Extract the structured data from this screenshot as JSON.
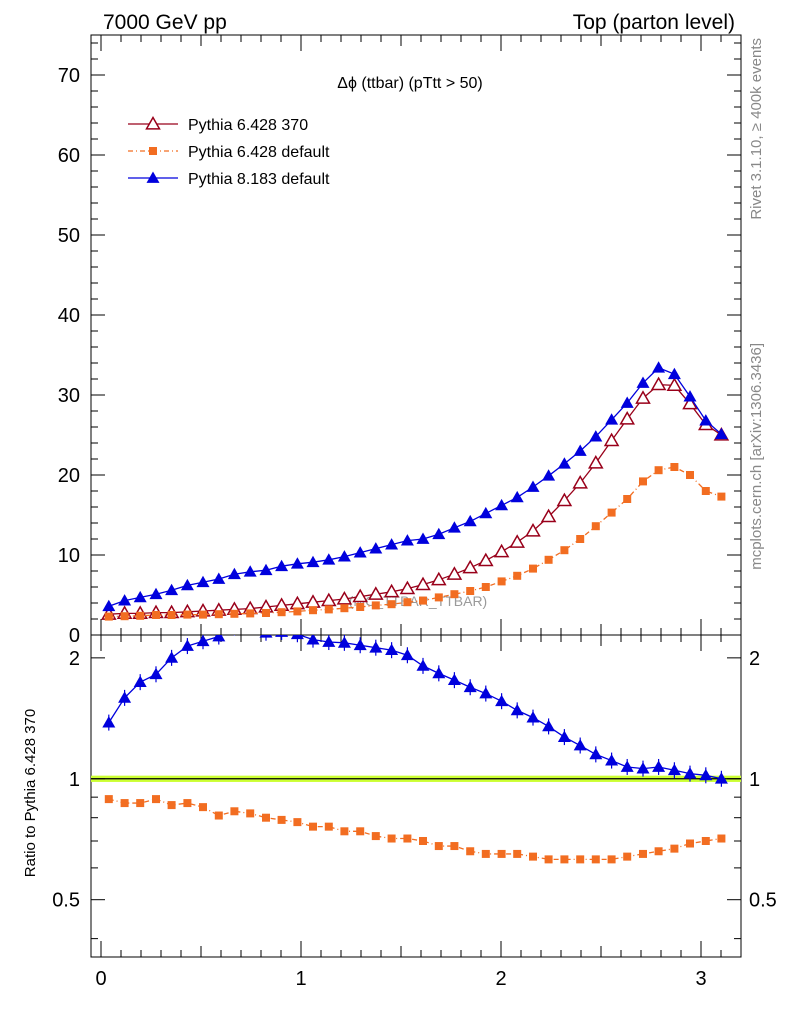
{
  "header": {
    "left_title": "7000 GeV pp",
    "right_title": "Top (parton level)"
  },
  "side_labels": {
    "rivet": "Rivet 3.1.10, ≥ 400k events",
    "mcplots": "mcplots.cern.ch [arXiv:1306.3436]"
  },
  "chart_data": [
    {
      "type": "line",
      "title": "Δϕ (ttbar) (pTtt > 50)",
      "watermark": "(MC_TTBAR_TTBAR)",
      "xlabel": "",
      "ylabel": "",
      "xlim": [
        -0.05,
        3.2
      ],
      "ylim": [
        0,
        75
      ],
      "yticks": [
        0,
        10,
        20,
        30,
        40,
        50,
        60,
        70
      ],
      "legend_position": "top-left",
      "x": [
        0.039,
        0.118,
        0.196,
        0.275,
        0.353,
        0.432,
        0.51,
        0.589,
        0.667,
        0.746,
        0.825,
        0.903,
        0.982,
        1.06,
        1.139,
        1.217,
        1.296,
        1.374,
        1.453,
        1.532,
        1.61,
        1.689,
        1.767,
        1.846,
        1.924,
        2.003,
        2.081,
        2.16,
        2.238,
        2.317,
        2.396,
        2.474,
        2.553,
        2.631,
        2.71,
        2.788,
        2.867,
        2.945,
        3.024,
        3.102
      ],
      "series": [
        {
          "name": "Pythia 6.428 370",
          "color": "#99001a",
          "marker": "open-triangle",
          "values": [
            2.6,
            2.7,
            2.7,
            2.8,
            2.8,
            2.9,
            3.0,
            3.1,
            3.2,
            3.3,
            3.5,
            3.7,
            3.9,
            4.1,
            4.3,
            4.5,
            4.8,
            5.1,
            5.4,
            5.8,
            6.3,
            6.9,
            7.6,
            8.4,
            9.3,
            10.4,
            11.6,
            13.0,
            14.8,
            16.8,
            19.0,
            21.5,
            24.3,
            27.0,
            29.6,
            31.3,
            31.2,
            28.9,
            26.3,
            25.0
          ]
        },
        {
          "name": "Pythia 6.428 default",
          "color": "#f26d21",
          "marker": "filled-square",
          "values": [
            2.3,
            2.35,
            2.4,
            2.5,
            2.5,
            2.55,
            2.55,
            2.6,
            2.65,
            2.7,
            2.75,
            2.85,
            2.95,
            3.1,
            3.2,
            3.35,
            3.5,
            3.7,
            3.85,
            4.1,
            4.3,
            4.7,
            5.1,
            5.5,
            6.0,
            6.7,
            7.4,
            8.3,
            9.4,
            10.6,
            12.0,
            13.6,
            15.3,
            17.0,
            19.2,
            20.6,
            21.0,
            20.0,
            18.0,
            17.3
          ]
        },
        {
          "name": "Pythia 8.183 default",
          "color": "#0000dd",
          "marker": "filled-triangle",
          "values": [
            3.6,
            4.3,
            4.7,
            5.1,
            5.6,
            6.2,
            6.6,
            7.0,
            7.6,
            7.9,
            8.1,
            8.6,
            8.9,
            9.1,
            9.4,
            9.8,
            10.3,
            10.8,
            11.3,
            11.8,
            12.0,
            12.6,
            13.4,
            14.2,
            15.2,
            16.2,
            17.2,
            18.5,
            19.9,
            21.4,
            23.0,
            24.8,
            26.9,
            29.0,
            31.5,
            33.4,
            32.6,
            29.8,
            26.8,
            25.1
          ]
        }
      ]
    },
    {
      "type": "line",
      "title": "",
      "ylabel": "Ratio to Pythia 6.428 370",
      "xlabel": "",
      "xlim": [
        -0.05,
        3.2
      ],
      "ylim": [
        0.36,
        2.28
      ],
      "yscale": "log",
      "ytick_labels": [
        "0.5",
        "1",
        "2"
      ],
      "yticks": [
        0.5,
        1,
        2
      ],
      "xtick_labels": [
        "0",
        "1",
        "2",
        "3"
      ],
      "xticks": [
        0,
        1,
        2,
        3
      ],
      "reference_line": 1,
      "band_color": "#ccff33",
      "series": [
        {
          "name": "Pythia 6.428 default",
          "color": "#f26d21",
          "values": [
            0.89,
            0.87,
            0.87,
            0.89,
            0.86,
            0.87,
            0.85,
            0.81,
            0.83,
            0.82,
            0.8,
            0.79,
            0.78,
            0.76,
            0.76,
            0.74,
            0.74,
            0.72,
            0.71,
            0.71,
            0.7,
            0.68,
            0.68,
            0.66,
            0.65,
            0.65,
            0.65,
            0.64,
            0.63,
            0.63,
            0.63,
            0.63,
            0.63,
            0.64,
            0.65,
            0.66,
            0.67,
            0.69,
            0.7,
            0.71
          ]
        },
        {
          "name": "Pythia 8.183 default",
          "color": "#0000dd",
          "values": [
            1.38,
            1.59,
            1.74,
            1.82,
            2.0,
            2.14,
            2.2,
            2.26,
            2.38,
            2.39,
            2.31,
            2.32,
            2.29,
            2.22,
            2.19,
            2.18,
            2.15,
            2.12,
            2.09,
            2.03,
            1.91,
            1.83,
            1.76,
            1.69,
            1.63,
            1.56,
            1.48,
            1.42,
            1.35,
            1.27,
            1.21,
            1.15,
            1.11,
            1.07,
            1.06,
            1.07,
            1.05,
            1.03,
            1.02,
            1.0
          ]
        }
      ]
    }
  ]
}
